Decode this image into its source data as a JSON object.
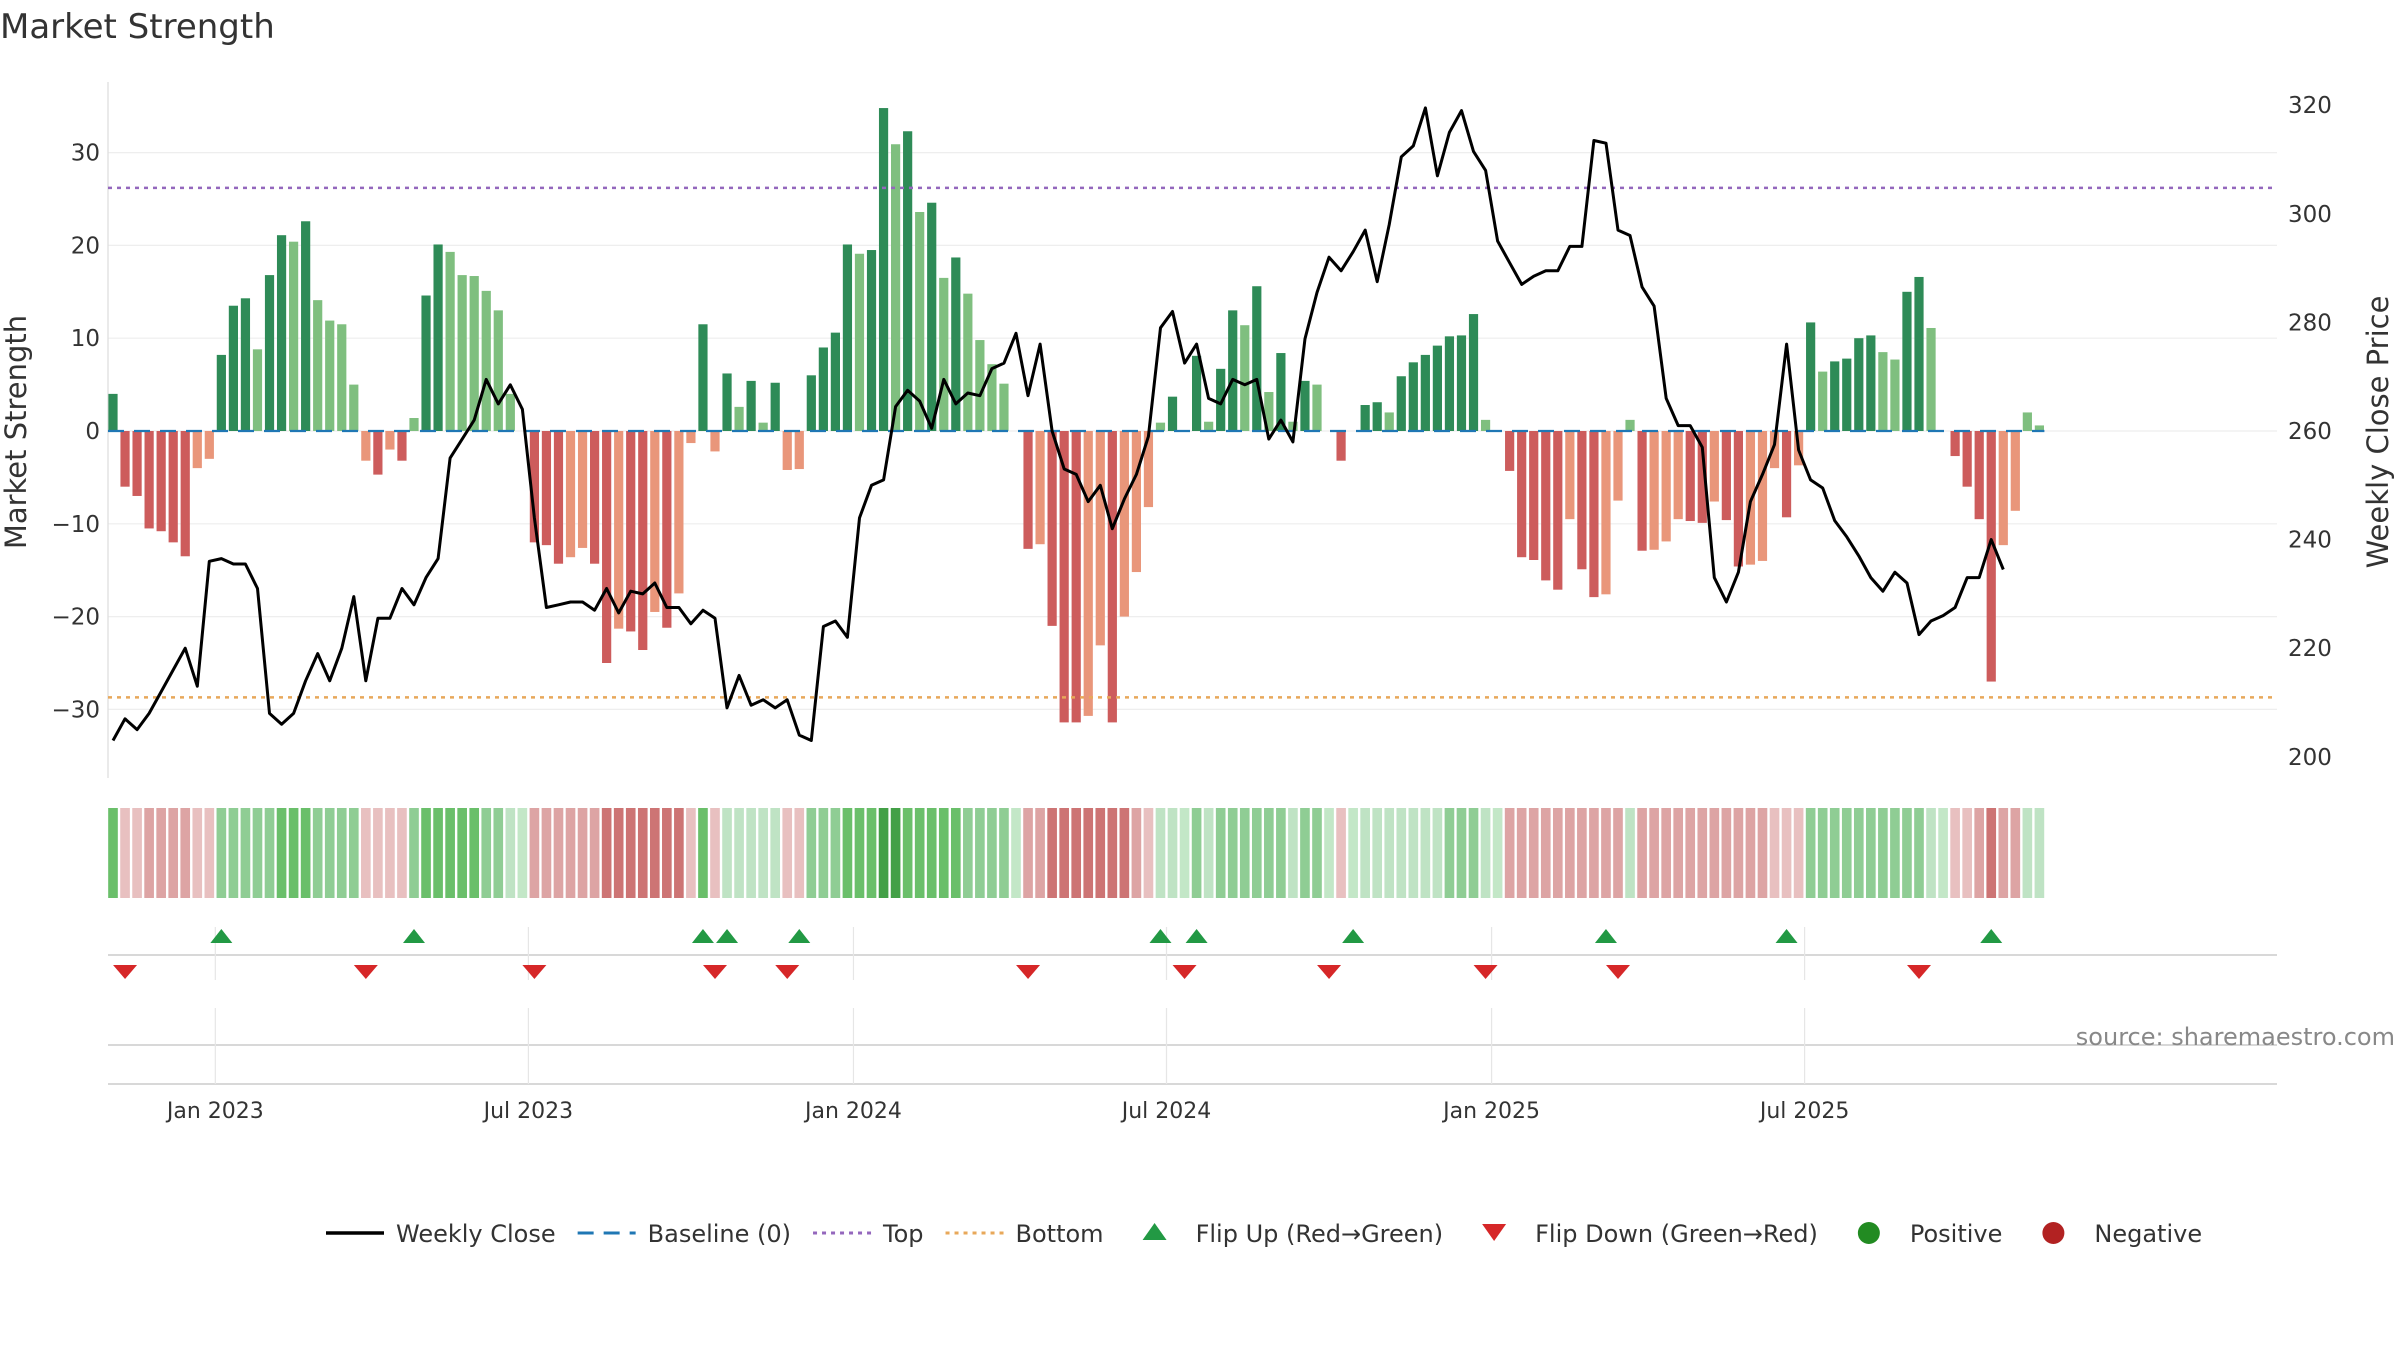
{
  "chart_data": {
    "type": "bar",
    "title": "Market Strength",
    "ylabel": "Market Strength",
    "y2label": "Weekly Close Price",
    "ylim": [
      -37,
      37
    ],
    "y2lim": [
      197,
      322
    ],
    "yticks": [
      30,
      20,
      10,
      0,
      -10,
      -20,
      -30
    ],
    "ytick_labels": [
      "30",
      "20",
      "10",
      "0",
      "−10",
      "−20",
      "−30"
    ],
    "y2ticks": [
      320,
      300,
      280,
      260,
      240,
      220,
      200
    ],
    "y2tick_labels": [
      "320",
      "300",
      "280",
      "260",
      "240",
      "220",
      "200"
    ],
    "xticks": [
      8.5,
      34.5,
      61.5,
      87.5,
      114.5,
      140.5
    ],
    "xtick_labels": [
      "Jan 2023",
      "Jul 2023",
      "Jan 2024",
      "Jul 2024",
      "Jan 2025",
      "Jul 2025"
    ],
    "top_line": 26.2,
    "bottom_line": -28.7,
    "strength": [
      4,
      -6,
      -7,
      -10.5,
      -10.8,
      -12,
      -13.5,
      -4,
      -3,
      8.2,
      13.5,
      14.3,
      8.8,
      16.8,
      21.1,
      20.4,
      22.6,
      14.1,
      11.9,
      11.5,
      5,
      -3.2,
      -4.7,
      -2,
      -3.2,
      1.4,
      14.6,
      20.1,
      19.3,
      16.8,
      16.7,
      15.1,
      13,
      4,
      0,
      -12,
      -12.3,
      -14.3,
      -13.6,
      -12.6,
      -14.3,
      -25,
      -21.3,
      -21.6,
      -23.6,
      -19.5,
      -21.2,
      -17.5,
      -1.3,
      11.5,
      -2.2,
      6.2,
      2.6,
      5.4,
      0.9,
      5.2,
      -4.2,
      -4.1,
      6,
      9,
      10.6,
      20.1,
      19.1,
      19.5,
      34.8,
      30.9,
      32.3,
      23.6,
      24.6,
      16.5,
      18.7,
      14.8,
      9.8,
      7.2,
      5.1,
      0,
      -12.7,
      -12.2,
      -21,
      -31.4,
      -31.4,
      -30.7,
      -23.1,
      -31.4,
      -20,
      -15.2,
      -8.2,
      0.9,
      3.7,
      0,
      8.1,
      1,
      6.7,
      13,
      11.4,
      15.6,
      4.2,
      8.4,
      1,
      5.4,
      5,
      0,
      -3.2,
      0,
      2.8,
      3.1,
      2,
      5.9,
      7.4,
      8.2,
      9.2,
      10.2,
      10.3,
      12.6,
      1.2,
      0,
      -4.3,
      -13.6,
      -13.9,
      -16.1,
      -17.1,
      -9.5,
      -14.9,
      -17.9,
      -17.6,
      -7.5,
      1.2,
      -12.9,
      -12.8,
      -11.9,
      -9.5,
      -9.7,
      -9.9,
      -7.6,
      -9.6,
      -14.6,
      -14.4,
      -14,
      -4,
      -9.3,
      -3.7,
      11.7,
      6.4,
      7.5,
      7.8,
      10,
      10.3,
      8.5,
      7.7,
      15,
      16.6,
      11.1,
      0,
      -2.7,
      -6,
      -9.5,
      -27,
      -12.3,
      -8.6,
      2,
      0.6
    ],
    "price": [
      203,
      207,
      205,
      208,
      212,
      216,
      220,
      213,
      236,
      236.5,
      235.5,
      235.5,
      231,
      208,
      206,
      208,
      214,
      219,
      214,
      220,
      229.5,
      214,
      225.5,
      225.5,
      231,
      228,
      233,
      236.5,
      255,
      258.5,
      262,
      269.5,
      265,
      268.5,
      264,
      244,
      227.5,
      228,
      228.5,
      228.5,
      227,
      231,
      226.5,
      230.5,
      230,
      232,
      227.5,
      227.5,
      224.5,
      227,
      225.5,
      209,
      215,
      209.5,
      210.5,
      209,
      210.5,
      204,
      203,
      224,
      225,
      222,
      244,
      250,
      251,
      264.5,
      267.5,
      265.5,
      260.5,
      269.5,
      265,
      267,
      266.5,
      271.5,
      272.5,
      278,
      266.5,
      276,
      260,
      253,
      252,
      247,
      250,
      242,
      247.5,
      252,
      259,
      279,
      282,
      272.5,
      276,
      266,
      265,
      269.5,
      268.5,
      269.5,
      258.5,
      262,
      258,
      277,
      285.5,
      292,
      289.5,
      293,
      297,
      287.5,
      298,
      310.5,
      312.5,
      319.5,
      307,
      315,
      319,
      311.5,
      308,
      295,
      291,
      287,
      288.5,
      289.5,
      289.5,
      294,
      294,
      313.5,
      313,
      297,
      296,
      286.5,
      283,
      266,
      261,
      261,
      257,
      233,
      228.5,
      234,
      247,
      252,
      257.5,
      276,
      256.5,
      251,
      249.5,
      243.5,
      240.5,
      237,
      233,
      230.5,
      234,
      232,
      222.5,
      225,
      226,
      227.5,
      233,
      233,
      240,
      234.5
    ],
    "colorbar_strength": [
      3,
      -1,
      -1,
      -2,
      -2,
      -2,
      -2,
      -1,
      -1,
      2,
      2,
      2,
      2,
      2,
      3,
      3,
      3,
      2,
      2,
      2,
      2,
      -1,
      -1,
      -1,
      -1,
      2,
      3,
      3,
      3,
      3,
      3,
      2,
      2,
      1,
      0,
      -2,
      -2,
      -2,
      -2,
      -2,
      -2,
      -3,
      -3,
      -3,
      -3,
      -3,
      -3,
      -3,
      -1,
      3,
      -1,
      1,
      1,
      1,
      1,
      1,
      -1,
      -1,
      2,
      2,
      2,
      3,
      3,
      3,
      4,
      4,
      3,
      3,
      3,
      3,
      3,
      2,
      2,
      2,
      2,
      0,
      -2,
      -2,
      -3,
      -3,
      -3,
      -3,
      -3,
      -3,
      -3,
      -2,
      -1,
      1,
      1,
      0,
      2,
      1,
      2,
      2,
      2,
      2,
      2,
      2,
      1,
      2,
      2,
      0,
      -1,
      0,
      1,
      1,
      1,
      1,
      1,
      1,
      1,
      2,
      2,
      2,
      1,
      0,
      -2,
      -2,
      -2,
      -2,
      -2,
      -2,
      -2,
      -2,
      -2,
      -2,
      1,
      -2,
      -2,
      -2,
      -2,
      -2,
      -2,
      -2,
      -2,
      -2,
      -2,
      -2,
      -1,
      -1,
      -1,
      2,
      2,
      2,
      2,
      2,
      2,
      2,
      2,
      2,
      2,
      1,
      0,
      -1,
      -1,
      -2,
      -3,
      -2,
      -2,
      1,
      1
    ],
    "flip_up_weeks": [
      9,
      25,
      49,
      51,
      57,
      87,
      90,
      103,
      124,
      139,
      156
    ],
    "flip_down_weeks": [
      1,
      21,
      35,
      50,
      56,
      76,
      89,
      101,
      114,
      125,
      150
    ],
    "source": "source: sharemaestro.com",
    "colors": {
      "green_strong": "#2e8b57",
      "green_light": "#7fbf7f",
      "red_strong": "#cd5c5c",
      "red_light": "#e9967a",
      "price_line": "#000000",
      "baseline": "#1f77b4",
      "top": "#9467bd",
      "bottom": "#e8a85a",
      "flip_up": "#229944",
      "flip_down": "#d62728",
      "positive": "#228b22",
      "negative": "#b22222"
    },
    "legend": [
      {
        "label": "Weekly Close",
        "kind": "line",
        "color": "#000000"
      },
      {
        "label": "Baseline (0)",
        "kind": "dash",
        "color": "#1f77b4"
      },
      {
        "label": "Top",
        "kind": "dot",
        "color": "#9467bd"
      },
      {
        "label": "Bottom",
        "kind": "dot",
        "color": "#e8a85a"
      },
      {
        "label": "Flip Up (Red→Green)",
        "kind": "tri-up",
        "color": "#229944"
      },
      {
        "label": "Flip Down (Green→Red)",
        "kind": "tri-down",
        "color": "#d62728"
      },
      {
        "label": "Positive",
        "kind": "circle",
        "color": "#228b22"
      },
      {
        "label": "Negative",
        "kind": "circle",
        "color": "#b22222"
      }
    ]
  }
}
